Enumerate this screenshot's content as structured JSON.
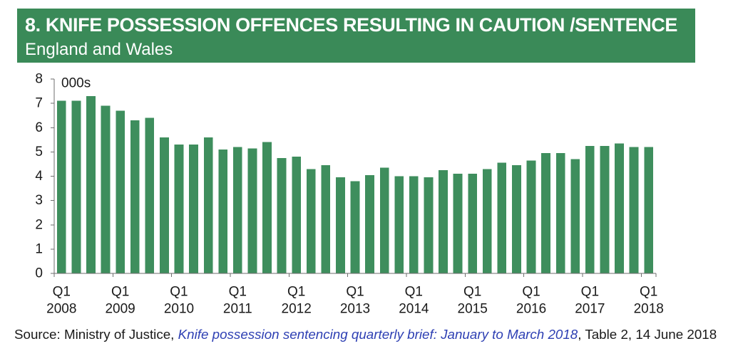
{
  "colors": {
    "header_bg": "#3a8a58",
    "header_text": "#ffffff",
    "bar": "#3e8e5d",
    "axis": "#6e6e6e",
    "text": "#1a1a1a",
    "link": "#2d3fb3"
  },
  "chart_data": {
    "type": "bar",
    "title": "8. KNIFE POSSESSION OFFENCES RESULTING IN CAUTION /SENTENCE",
    "subtitle": "England and Wales",
    "ylabel": "000s",
    "ylim": [
      0,
      8
    ],
    "yticks": [
      0,
      1,
      2,
      3,
      4,
      5,
      6,
      7,
      8
    ],
    "grid": false,
    "legend": "none",
    "x_tick_labels": [
      {
        "quarter": "Q1",
        "year": "2008"
      },
      {
        "quarter": "Q1",
        "year": "2009"
      },
      {
        "quarter": "Q1",
        "year": "2010"
      },
      {
        "quarter": "Q1",
        "year": "2011"
      },
      {
        "quarter": "Q1",
        "year": "2012"
      },
      {
        "quarter": "Q1",
        "year": "2013"
      },
      {
        "quarter": "Q1",
        "year": "2014"
      },
      {
        "quarter": "Q1",
        "year": "2015"
      },
      {
        "quarter": "Q1",
        "year": "2016"
      },
      {
        "quarter": "Q1",
        "year": "2017"
      },
      {
        "quarter": "Q1",
        "year": "2018"
      }
    ],
    "points": [
      {
        "year": 2008,
        "quarter": 1,
        "value": 7.1
      },
      {
        "year": 2008,
        "quarter": 2,
        "value": 7.1
      },
      {
        "year": 2008,
        "quarter": 3,
        "value": 7.3
      },
      {
        "year": 2008,
        "quarter": 4,
        "value": 6.9
      },
      {
        "year": 2009,
        "quarter": 1,
        "value": 6.7
      },
      {
        "year": 2009,
        "quarter": 2,
        "value": 6.3
      },
      {
        "year": 2009,
        "quarter": 3,
        "value": 6.4
      },
      {
        "year": 2009,
        "quarter": 4,
        "value": 5.6
      },
      {
        "year": 2010,
        "quarter": 1,
        "value": 5.3
      },
      {
        "year": 2010,
        "quarter": 2,
        "value": 5.3
      },
      {
        "year": 2010,
        "quarter": 3,
        "value": 5.6
      },
      {
        "year": 2010,
        "quarter": 4,
        "value": 5.1
      },
      {
        "year": 2011,
        "quarter": 1,
        "value": 5.2
      },
      {
        "year": 2011,
        "quarter": 2,
        "value": 5.15
      },
      {
        "year": 2011,
        "quarter": 3,
        "value": 5.4
      },
      {
        "year": 2011,
        "quarter": 4,
        "value": 4.75
      },
      {
        "year": 2012,
        "quarter": 1,
        "value": 4.8
      },
      {
        "year": 2012,
        "quarter": 2,
        "value": 4.3
      },
      {
        "year": 2012,
        "quarter": 3,
        "value": 4.45
      },
      {
        "year": 2012,
        "quarter": 4,
        "value": 3.95
      },
      {
        "year": 2013,
        "quarter": 1,
        "value": 3.8
      },
      {
        "year": 2013,
        "quarter": 2,
        "value": 4.05
      },
      {
        "year": 2013,
        "quarter": 3,
        "value": 4.35
      },
      {
        "year": 2013,
        "quarter": 4,
        "value": 4.0
      },
      {
        "year": 2014,
        "quarter": 1,
        "value": 4.0
      },
      {
        "year": 2014,
        "quarter": 2,
        "value": 3.95
      },
      {
        "year": 2014,
        "quarter": 3,
        "value": 4.25
      },
      {
        "year": 2014,
        "quarter": 4,
        "value": 4.1
      },
      {
        "year": 2015,
        "quarter": 1,
        "value": 4.1
      },
      {
        "year": 2015,
        "quarter": 2,
        "value": 4.3
      },
      {
        "year": 2015,
        "quarter": 3,
        "value": 4.55
      },
      {
        "year": 2015,
        "quarter": 4,
        "value": 4.45
      },
      {
        "year": 2016,
        "quarter": 1,
        "value": 4.65
      },
      {
        "year": 2016,
        "quarter": 2,
        "value": 4.95
      },
      {
        "year": 2016,
        "quarter": 3,
        "value": 4.95
      },
      {
        "year": 2016,
        "quarter": 4,
        "value": 4.7
      },
      {
        "year": 2017,
        "quarter": 1,
        "value": 5.25
      },
      {
        "year": 2017,
        "quarter": 2,
        "value": 5.25
      },
      {
        "year": 2017,
        "quarter": 3,
        "value": 5.35
      },
      {
        "year": 2017,
        "quarter": 4,
        "value": 5.2
      },
      {
        "year": 2018,
        "quarter": 1,
        "value": 5.2
      }
    ]
  },
  "source": {
    "prefix": "Source: Ministry of Justice, ",
    "link_text": "Knife possession sentencing quarterly brief: January to March 2018",
    "suffix": ", Table 2, 14 June 2018"
  }
}
